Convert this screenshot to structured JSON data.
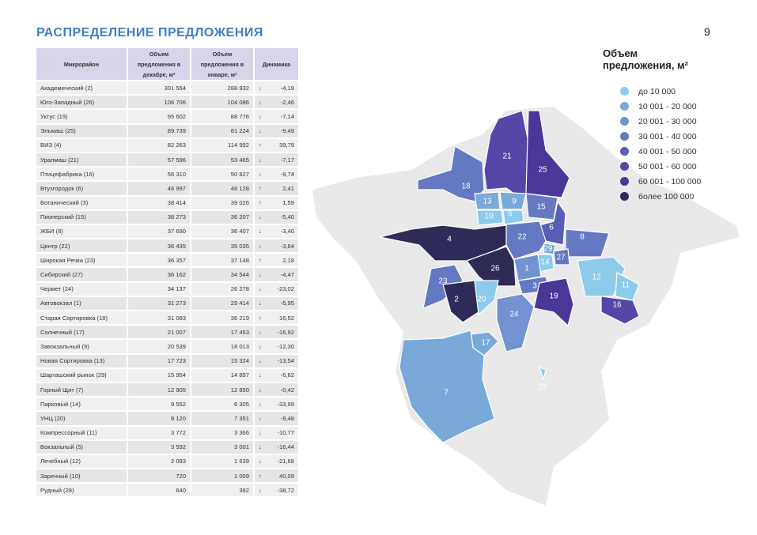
{
  "page_title": "РАСПРЕДЕЛЕНИЕ ПРЕДЛОЖЕНИЯ",
  "page_number": "9",
  "table": {
    "headers": [
      "Микрорайон",
      "Объем предложения в декабре, м²",
      "Объем предложения в январе, м²",
      "Динамика"
    ],
    "rows": [
      {
        "name": "Академический (2)",
        "dec": "301 554",
        "jan": "288 932",
        "dir": "↓",
        "dyn": "-4,19"
      },
      {
        "name": "Юго-Западный (26)",
        "dec": "106 706",
        "jan": "104 086",
        "dir": "↓",
        "dyn": "-2,46"
      },
      {
        "name": "Уктус (19)",
        "dec": "95 602",
        "jan": "88 776",
        "dir": "↓",
        "dyn": "-7,14"
      },
      {
        "name": "Эльмаш (25)",
        "dec": "89 739",
        "jan": "81 224",
        "dir": "↓",
        "dyn": "-9,49"
      },
      {
        "name": "ВИЗ (4)",
        "dec": "82 263",
        "jan": "114 992",
        "dir": "↑",
        "dyn": "39,79"
      },
      {
        "name": "Уралмаш (21)",
        "dec": "57 596",
        "jan": "53 465",
        "dir": "↓",
        "dyn": "-7,17"
      },
      {
        "name": "Птицефабрика (16)",
        "dec": "56 310",
        "jan": "50 827",
        "dir": "↓",
        "dyn": "-9,74"
      },
      {
        "name": "Втузгородок (6)",
        "dec": "46 997",
        "jan": "48 128",
        "dir": "↑",
        "dyn": "2,41"
      },
      {
        "name": "Ботанический (3)",
        "dec": "38 414",
        "jan": "39 026",
        "dir": "↑",
        "dyn": "1,59"
      },
      {
        "name": "Пионерский (15)",
        "dec": "38 273",
        "jan": "36 207",
        "dir": "↓",
        "dyn": "-5,40"
      },
      {
        "name": "ЖБИ (8)",
        "dec": "37 690",
        "jan": "36 407",
        "dir": "↓",
        "dyn": "-3,40"
      },
      {
        "name": "Центр (22)",
        "dec": "36 435",
        "jan": "35 035",
        "dir": "↓",
        "dyn": "-3,84"
      },
      {
        "name": "Широкая Речка (23)",
        "dec": "36 357",
        "jan": "37 148",
        "dir": "↑",
        "dyn": "2,18"
      },
      {
        "name": "Сибирский (27)",
        "dec": "36 162",
        "jan": "34 544",
        "dir": "↓",
        "dyn": "-4,47"
      },
      {
        "name": "Чермет (24)",
        "dec": "34 137",
        "jan": "26 278",
        "dir": "↓",
        "dyn": "-23,02"
      },
      {
        "name": "Автовокзал (1)",
        "dec": "31 273",
        "jan": "29 414",
        "dir": "↓",
        "dyn": "-5,95"
      },
      {
        "name": "Старая Сортировка (18)",
        "dec": "31 083",
        "jan": "36 219",
        "dir": "↑",
        "dyn": "16,52"
      },
      {
        "name": "Солнечный (17)",
        "dec": "21 007",
        "jan": "17 453",
        "dir": "↓",
        "dyn": "-16,92"
      },
      {
        "name": "Завокзальный (9)",
        "dec": "20 539",
        "jan": "18 013",
        "dir": "↓",
        "dyn": "-12,30"
      },
      {
        "name": "Новая Сортировка (13)",
        "dec": "17 723",
        "jan": "15 324",
        "dir": "↓",
        "dyn": "-13,54"
      },
      {
        "name": "Шарташский рынок (29)",
        "dec": "15 954",
        "jan": "14 897",
        "dir": "↓",
        "dyn": "-6,62"
      },
      {
        "name": "Горный Щит (7)",
        "dec": "12 905",
        "jan": "12 850",
        "dir": "↓",
        "dyn": "-0,42"
      },
      {
        "name": "Парковый (14)",
        "dec": "9 552",
        "jan": "6 305",
        "dir": "↓",
        "dyn": "-33,99"
      },
      {
        "name": "УНЦ (20)",
        "dec": "8 120",
        "jan": "7 351",
        "dir": "↓",
        "dyn": "-9,48"
      },
      {
        "name": "Компрессорный (11)",
        "dec": "3 772",
        "jan": "3 366",
        "dir": "↓",
        "dyn": "-10,77"
      },
      {
        "name": "Вокзальный (5)",
        "dec": "3 592",
        "jan": "3 001",
        "dir": "↓",
        "dyn": "-16,44"
      },
      {
        "name": "Лечебный (12)",
        "dec": "2 093",
        "jan": "1 639",
        "dir": "↓",
        "dyn": "-21,68"
      },
      {
        "name": "Заречный (10)",
        "dec": "720",
        "jan": "1 009",
        "dir": "↑",
        "dyn": "40,09"
      },
      {
        "name": "Рудный (28)",
        "dec": "640",
        "jan": "392",
        "dir": "↓",
        "dyn": "-38,72"
      }
    ]
  },
  "legend": {
    "title_line1": "Объем",
    "title_line2": "предложения, м²",
    "items": [
      {
        "label": "до 10 000",
        "color": "#8ccbec"
      },
      {
        "label": "10 001 - 20 000",
        "color": "#78a9d8"
      },
      {
        "label": "20 001 - 30 000",
        "color": "#7292d2"
      },
      {
        "label": "30 001 - 40 000",
        "color": "#6479c2"
      },
      {
        "label": "40 001 - 50 000",
        "color": "#5a5db6"
      },
      {
        "label": "50 001 - 60 000",
        "color": "#5447a8"
      },
      {
        "label": "60 001 - 100 000",
        "color": "#4a3797"
      },
      {
        "label": "более 100 000",
        "color": "#2f2b58"
      }
    ]
  },
  "map": {
    "districts": [
      {
        "id": "21",
        "tier": 5
      },
      {
        "id": "25",
        "tier": 6
      },
      {
        "id": "18",
        "tier": 3
      },
      {
        "id": "13",
        "tier": 1
      },
      {
        "id": "9",
        "tier": 1
      },
      {
        "id": "15",
        "tier": 3
      },
      {
        "id": "10",
        "tier": 0
      },
      {
        "id": "5",
        "tier": 0
      },
      {
        "id": "6",
        "tier": 4
      },
      {
        "id": "22",
        "tier": 3
      },
      {
        "id": "8",
        "tier": 3
      },
      {
        "id": "4",
        "tier": 7
      },
      {
        "id": "29",
        "tier": 1
      },
      {
        "id": "14",
        "tier": 0
      },
      {
        "id": "27",
        "tier": 3
      },
      {
        "id": "1",
        "tier": 2
      },
      {
        "id": "26",
        "tier": 7
      },
      {
        "id": "23",
        "tier": 3
      },
      {
        "id": "12",
        "tier": 0
      },
      {
        "id": "11",
        "tier": 0
      },
      {
        "id": "3",
        "tier": 3
      },
      {
        "id": "2",
        "tier": 7
      },
      {
        "id": "20",
        "tier": 0
      },
      {
        "id": "19",
        "tier": 6
      },
      {
        "id": "16",
        "tier": 5
      },
      {
        "id": "24",
        "tier": 2
      },
      {
        "id": "17",
        "tier": 1
      },
      {
        "id": "7",
        "tier": 1
      },
      {
        "id": "28",
        "tier": 0
      }
    ]
  }
}
